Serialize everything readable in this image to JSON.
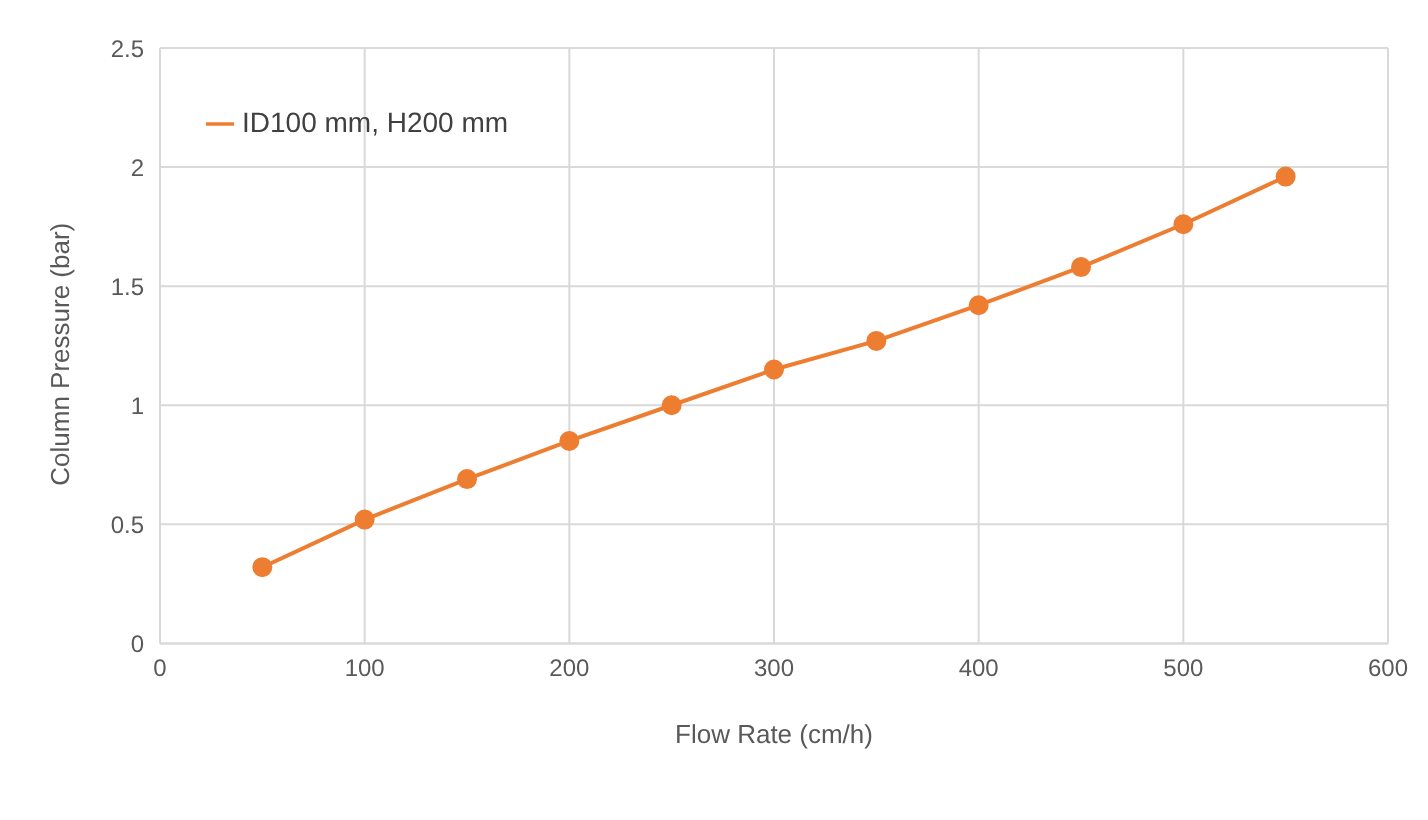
{
  "chart_data": {
    "type": "line",
    "xlabel": "Flow Rate (cm/h)",
    "ylabel": "Column Pressure (bar)",
    "x": [
      50,
      100,
      150,
      200,
      250,
      300,
      350,
      400,
      450,
      500,
      550
    ],
    "series": [
      {
        "name": "ID100 mm, H200 mm",
        "color": "#ed7d31",
        "values": [
          0.32,
          0.52,
          0.69,
          0.85,
          1.0,
          1.15,
          1.27,
          1.42,
          1.58,
          1.76,
          1.96
        ]
      }
    ],
    "xlim": [
      0,
      600
    ],
    "xticks": [
      0,
      100,
      200,
      300,
      400,
      500,
      600
    ],
    "ylim": [
      0,
      2.5
    ],
    "yticks": [
      0,
      0.5,
      1,
      1.5,
      2,
      2.5
    ],
    "grid": true,
    "legend": "top left",
    "marker": "circle",
    "line_style": "solid"
  }
}
